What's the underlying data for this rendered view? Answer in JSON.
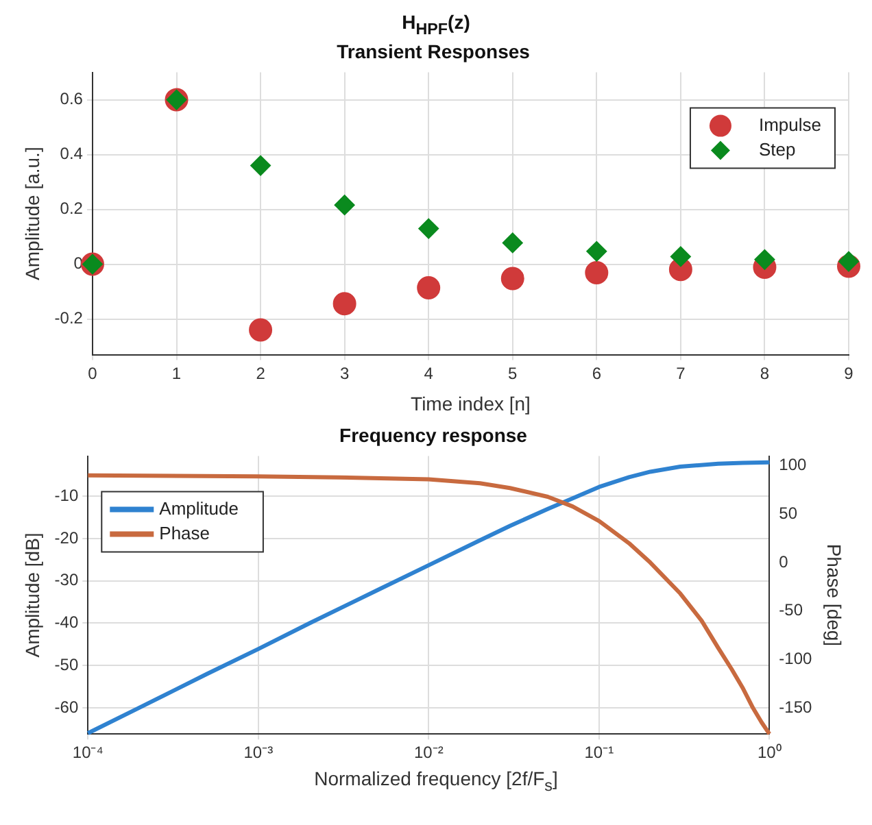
{
  "chart_data": [
    {
      "type": "scatter",
      "title": "H$_{HPF}$(z)",
      "subtitle": "Transient Responses",
      "xlabel": "Time index [n]",
      "ylabel": "Amplitude [a.u.]",
      "x": [
        0,
        1,
        2,
        3,
        4,
        5,
        6,
        7,
        8,
        9
      ],
      "series": [
        {
          "name": "Impulse",
          "color": "#d03a3a",
          "marker": "circle",
          "values": [
            0,
            0.6,
            -0.24,
            -0.144,
            -0.086,
            -0.052,
            -0.031,
            -0.019,
            -0.011,
            -0.007
          ]
        },
        {
          "name": "Step",
          "color": "#0a8a1e",
          "marker": "diamond",
          "values": [
            0,
            0.6,
            0.36,
            0.216,
            0.13,
            0.078,
            0.047,
            0.028,
            0.017,
            0.01
          ]
        }
      ],
      "xlim": [
        0,
        9
      ],
      "xticks": [
        0,
        1,
        2,
        3,
        4,
        5,
        6,
        7,
        8,
        9
      ],
      "ylim": [
        -0.33,
        0.7
      ],
      "yticks": [
        -0.2,
        0,
        0.2,
        0.4,
        0.6
      ],
      "grid": true,
      "legend": "top right"
    },
    {
      "type": "line",
      "title": "Frequency response",
      "xlabel": "Normalized frequency [2f/F$_{s}$]",
      "ylabel": "Amplitude [dB]",
      "y2label": "Phase [deg]",
      "log": "x",
      "marker": "none",
      "line_style": "solid",
      "series": [
        {
          "name": "Amplitude",
          "color": "#2f82d0",
          "x": [
            0.0001,
            0.0002,
            0.0005,
            0.001,
            0.002,
            0.005,
            0.01,
            0.02,
            0.03,
            0.05,
            0.07,
            0.1,
            0.15,
            0.2,
            0.3,
            0.5,
            0.7,
            1
          ],
          "values": [
            -66,
            -60,
            -52,
            -46.1,
            -40,
            -32.2,
            -26.3,
            -20.4,
            -17,
            -13,
            -10.5,
            -7.8,
            -5.5,
            -4.2,
            -3,
            -2.3,
            -2.1,
            -2
          ]
        },
        {
          "name": "Phase",
          "color": "#c86a3f",
          "axis": "y2",
          "x": [
            0.0001,
            0.001,
            0.003,
            0.01,
            0.02,
            0.03,
            0.05,
            0.07,
            0.1,
            0.15,
            0.2,
            0.3,
            0.4,
            0.5,
            0.6,
            0.7,
            0.8,
            0.9,
            1
          ],
          "values": [
            90,
            89,
            88,
            86,
            82,
            77,
            68,
            58,
            43,
            20,
            0,
            -32,
            -60,
            -88,
            -110,
            -130,
            -150,
            -165,
            -177
          ]
        }
      ],
      "xlim": [
        0.0001,
        1
      ],
      "xticks": [
        {
          "value": 0.0001,
          "label": "10⁻⁴"
        },
        {
          "value": 0.001,
          "label": "10⁻³"
        },
        {
          "value": 0.01,
          "label": "10⁻²"
        },
        {
          "value": 0.1,
          "label": "10⁻¹"
        },
        {
          "value": 1,
          "label": "10⁰"
        }
      ],
      "ylim": [
        -66.2,
        -0.5
      ],
      "yticks": [
        -60,
        -50,
        -40,
        -30,
        -20,
        -10
      ],
      "y2lim": [
        -177,
        110
      ],
      "y2ticks": [
        -150,
        -100,
        -50,
        0,
        50,
        100
      ],
      "grid": true,
      "legend": "top left"
    }
  ]
}
